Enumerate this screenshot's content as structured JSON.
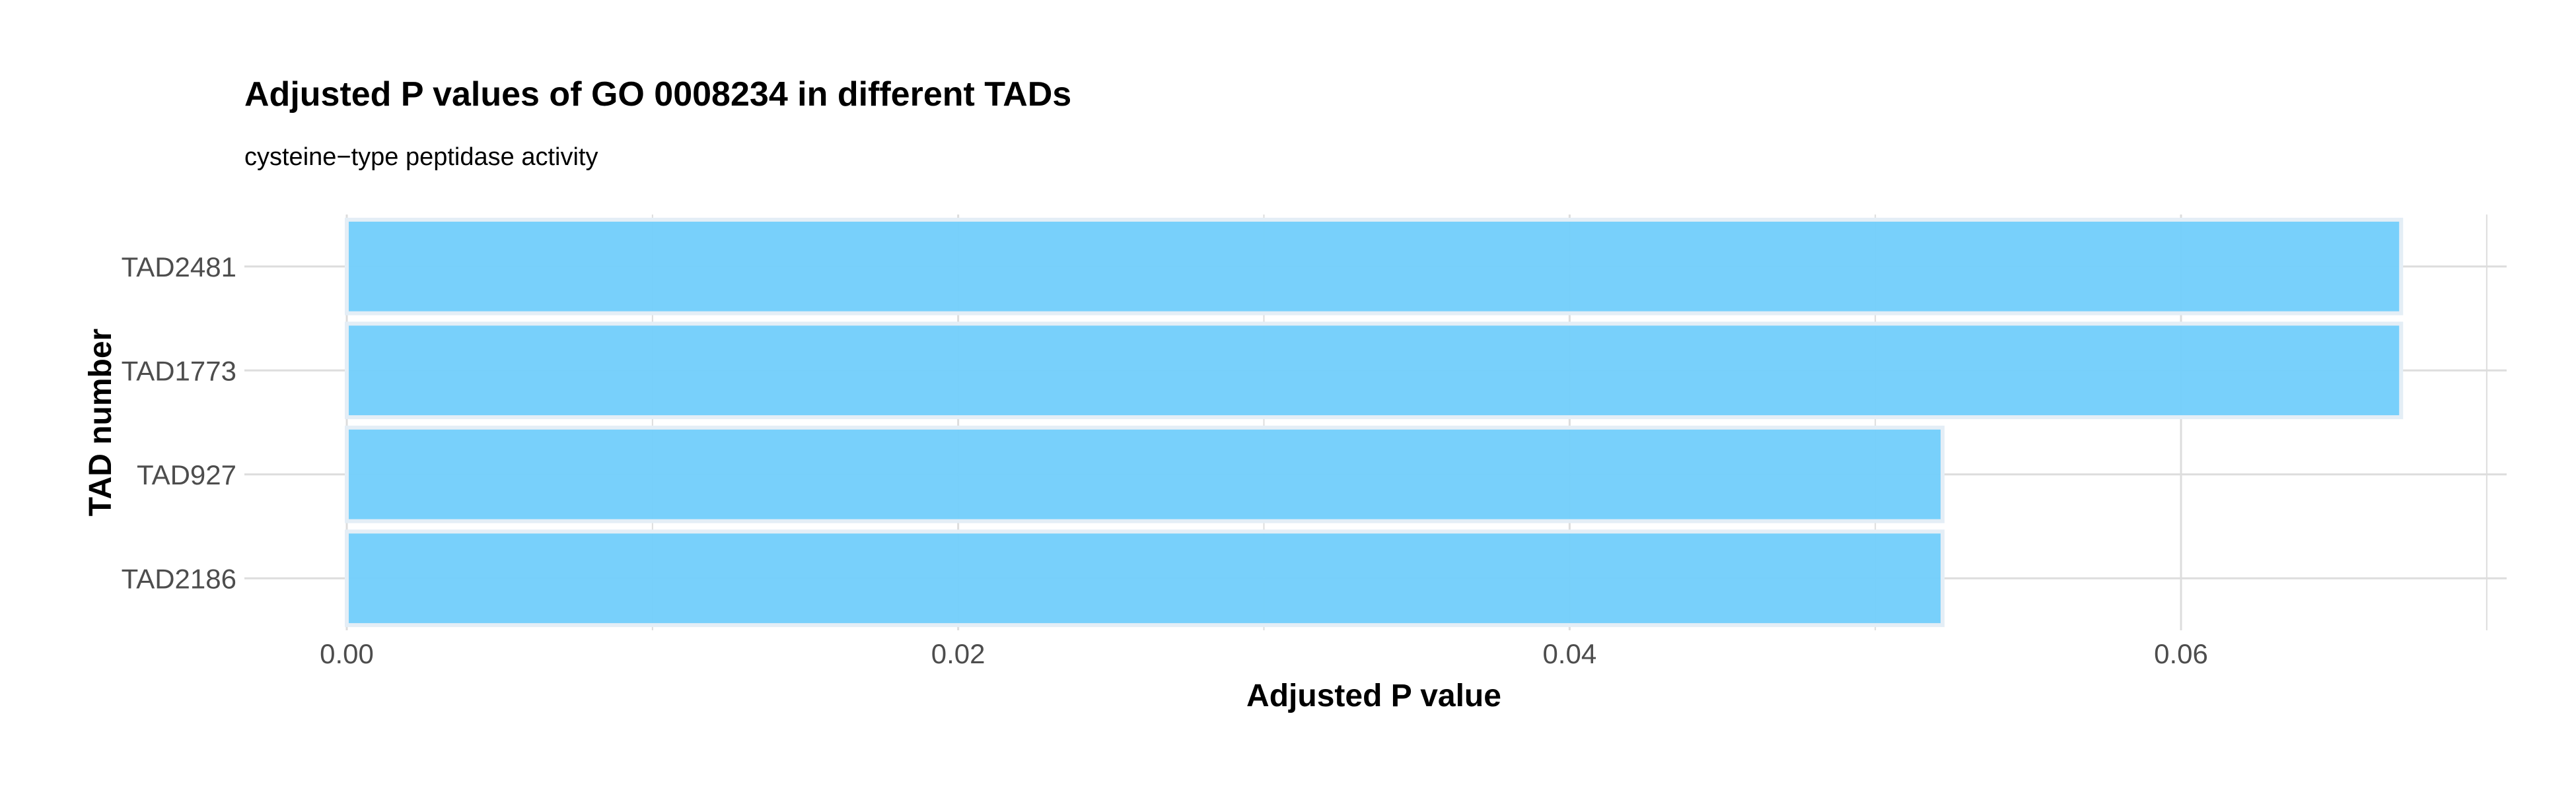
{
  "chart_data": {
    "type": "bar",
    "orientation": "horizontal",
    "title": "Adjusted P values of GO 0008234 in different TADs",
    "subtitle": "cysteine−type peptidase activity",
    "xlabel": "Adjusted P value",
    "ylabel": "TAD number",
    "categories": [
      "TAD2481",
      "TAD1773",
      "TAD927",
      "TAD2186"
    ],
    "values": [
      0.0672,
      0.0672,
      0.0522,
      0.0522
    ],
    "xlim": [
      0,
      0.0705
    ],
    "x_ticks": [
      0.0,
      0.02,
      0.04,
      0.06
    ],
    "x_tick_labels": [
      "0.00",
      "0.02",
      "0.04",
      "0.06"
    ],
    "grid": true,
    "legend": "none",
    "colors": {
      "bar_fill": "#74CEFB",
      "bar_stroke": "#E4EEF6",
      "grid": "#DDDDDD"
    }
  }
}
